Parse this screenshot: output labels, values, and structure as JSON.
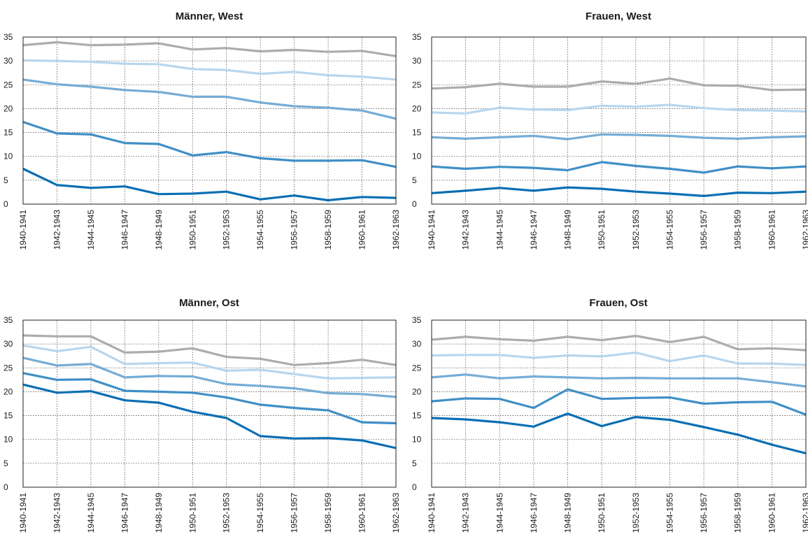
{
  "chart_data": [
    {
      "type": "line",
      "title": "Männer, West",
      "categories": [
        "1940-1941",
        "1942-1943",
        "1944-1945",
        "1946-1947",
        "1948-1949",
        "1950-1951",
        "1952-1953",
        "1954-1955",
        "1956-1957",
        "1958-1959",
        "1960-1961",
        "1962-1963"
      ],
      "y_ticks": [
        "0",
        "5",
        "10",
        "15",
        "20",
        "25",
        "30",
        "35"
      ],
      "ylim": [
        0,
        35
      ],
      "grid": true,
      "series": [
        {
          "color": "#0a6fb4",
          "values": [
            7.4,
            4.0,
            3.4,
            3.7,
            2.1,
            2.2,
            2.6,
            1.0,
            1.8,
            0.8,
            1.5,
            1.3
          ]
        },
        {
          "color": "#3f8fc6",
          "values": [
            17.2,
            14.8,
            14.6,
            12.8,
            12.6,
            10.2,
            10.9,
            9.6,
            9.1,
            9.1,
            9.2,
            7.8
          ]
        },
        {
          "color": "#75acd6",
          "values": [
            26.1,
            25.1,
            24.6,
            23.9,
            23.5,
            22.5,
            22.5,
            21.3,
            20.5,
            20.2,
            19.6,
            17.9
          ]
        },
        {
          "color": "#b7d6ee",
          "values": [
            30.1,
            30.0,
            29.8,
            29.4,
            29.3,
            28.3,
            28.1,
            27.3,
            27.7,
            27.0,
            26.7,
            26.1
          ]
        },
        {
          "color": "#acacac",
          "values": [
            33.3,
            33.9,
            33.3,
            33.4,
            33.7,
            32.4,
            32.7,
            32.0,
            32.3,
            31.9,
            32.1,
            31.0
          ]
        }
      ]
    },
    {
      "type": "line",
      "title": "Frauen, West",
      "categories": [
        "1940-1941",
        "1942-1943",
        "1944-1945",
        "1946-1947",
        "1948-1949",
        "1950-1951",
        "1952-1953",
        "1954-1955",
        "1956-1957",
        "1958-1959",
        "1960-1961",
        "1962-1963"
      ],
      "y_ticks": [
        "0",
        "5",
        "10",
        "15",
        "20",
        "25",
        "30",
        "35"
      ],
      "ylim": [
        0,
        35
      ],
      "grid": true,
      "series": [
        {
          "color": "#0a6fb4",
          "values": [
            2.3,
            2.8,
            3.4,
            2.8,
            3.5,
            3.2,
            2.6,
            2.2,
            1.7,
            2.4,
            2.3,
            2.6
          ]
        },
        {
          "color": "#3f8fc6",
          "values": [
            7.9,
            7.4,
            7.8,
            7.6,
            7.1,
            8.8,
            8.0,
            7.4,
            6.6,
            7.9,
            7.5,
            7.9
          ]
        },
        {
          "color": "#75acd6",
          "values": [
            14.0,
            13.7,
            14.0,
            14.3,
            13.6,
            14.6,
            14.5,
            14.3,
            13.9,
            13.7,
            14.0,
            14.2
          ]
        },
        {
          "color": "#b7d6ee",
          "values": [
            19.2,
            19.0,
            20.2,
            19.8,
            19.7,
            20.6,
            20.4,
            20.8,
            20.1,
            19.7,
            19.6,
            19.4
          ]
        },
        {
          "color": "#acacac",
          "values": [
            24.2,
            24.5,
            25.2,
            24.6,
            24.6,
            25.7,
            25.2,
            26.3,
            24.9,
            24.8,
            23.9,
            24.0
          ]
        }
      ]
    },
    {
      "type": "line",
      "title": "Männer, Ost",
      "categories": [
        "1940-1941",
        "1942-1943",
        "1944-1945",
        "1946-1947",
        "1948-1949",
        "1950-1951",
        "1952-1953",
        "1954-1955",
        "1956-1957",
        "1958-1959",
        "1960-1961",
        "1962-1963"
      ],
      "y_ticks": [
        "0",
        "5",
        "10",
        "15",
        "20",
        "25",
        "30",
        "35"
      ],
      "ylim": [
        0,
        35
      ],
      "grid": true,
      "series": [
        {
          "color": "#0a6fb4",
          "values": [
            21.5,
            19.8,
            20.1,
            18.2,
            17.7,
            15.8,
            14.5,
            10.7,
            10.2,
            10.3,
            9.8,
            8.2
          ]
        },
        {
          "color": "#3f8fc6",
          "values": [
            23.9,
            22.5,
            22.6,
            20.2,
            20.0,
            19.8,
            18.8,
            17.3,
            16.6,
            16.1,
            13.6,
            13.4
          ]
        },
        {
          "color": "#75acd6",
          "values": [
            27.1,
            25.5,
            25.8,
            23.0,
            23.3,
            23.2,
            21.6,
            21.2,
            20.7,
            19.7,
            19.5,
            18.9
          ]
        },
        {
          "color": "#b7d6ee",
          "values": [
            29.7,
            28.5,
            29.4,
            25.8,
            26.0,
            26.1,
            24.4,
            24.6,
            23.7,
            22.8,
            22.9,
            23.0
          ]
        },
        {
          "color": "#acacac",
          "values": [
            31.8,
            31.6,
            31.6,
            28.2,
            28.4,
            29.1,
            27.3,
            26.9,
            25.6,
            26.0,
            26.7,
            25.6
          ]
        }
      ]
    },
    {
      "type": "line",
      "title": "Frauen, Ost",
      "categories": [
        "1940-1941",
        "1942-1943",
        "1944-1945",
        "1946-1947",
        "1948-1949",
        "1950-1951",
        "1952-1953",
        "1954-1955",
        "1956-1957",
        "1958-1959",
        "1960-1961",
        "1962-1963"
      ],
      "y_ticks": [
        "0",
        "5",
        "10",
        "15",
        "20",
        "25",
        "30",
        "35"
      ],
      "ylim": [
        0,
        35
      ],
      "grid": true,
      "series": [
        {
          "color": "#0a6fb4",
          "values": [
            14.5,
            14.2,
            13.6,
            12.7,
            15.4,
            12.8,
            14.7,
            14.1,
            12.6,
            11.0,
            8.9,
            7.1
          ]
        },
        {
          "color": "#3f8fc6",
          "values": [
            18.0,
            18.6,
            18.5,
            16.6,
            20.5,
            18.5,
            18.7,
            18.8,
            17.5,
            17.8,
            17.9,
            15.2
          ]
        },
        {
          "color": "#75acd6",
          "values": [
            23.0,
            23.6,
            22.8,
            23.2,
            23.0,
            22.8,
            22.9,
            22.8,
            22.8,
            22.8,
            22.0,
            21.1
          ]
        },
        {
          "color": "#b7d6ee",
          "values": [
            27.6,
            27.7,
            27.7,
            27.1,
            27.6,
            27.4,
            28.2,
            26.4,
            27.6,
            25.9,
            25.9,
            25.6
          ]
        },
        {
          "color": "#acacac",
          "values": [
            30.9,
            31.5,
            31.0,
            30.7,
            31.5,
            30.8,
            31.7,
            30.4,
            31.5,
            28.9,
            29.1,
            28.7
          ]
        }
      ]
    }
  ]
}
